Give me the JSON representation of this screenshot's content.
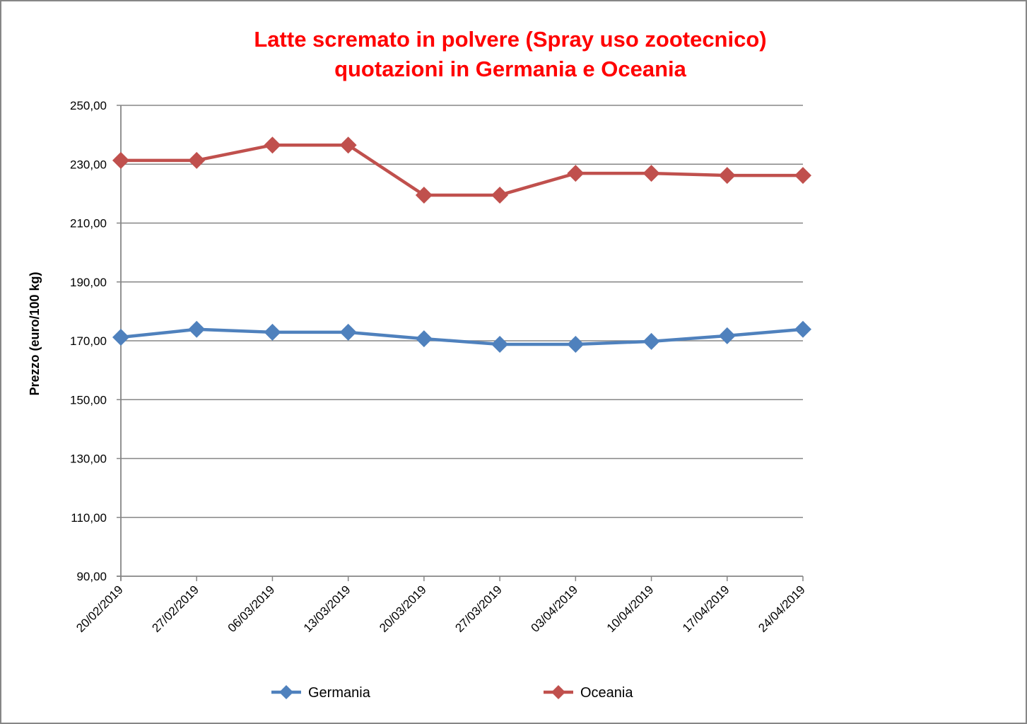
{
  "chart_data": {
    "type": "line",
    "title": [
      "Latte scremato in polvere (Spray uso zootecnico)",
      "quotazioni in Germania e Oceania"
    ],
    "title_color": "#FF0000",
    "xlabel": "",
    "ylabel": "Prezzo (euro/100 kg)",
    "ylim": [
      90,
      250
    ],
    "y_ticks": [
      90,
      110,
      130,
      150,
      170,
      190,
      210,
      230,
      250
    ],
    "y_tick_labels": [
      "90,00",
      "110,00",
      "130,00",
      "150,00",
      "170,00",
      "190,00",
      "210,00",
      "230,00",
      "250,00"
    ],
    "grid": true,
    "legend_position": "bottom",
    "categories": [
      "20/02/2019",
      "27/02/2019",
      "06/03/2019",
      "13/03/2019",
      "20/03/2019",
      "27/03/2019",
      "03/04/2019",
      "10/04/2019",
      "17/04/2019",
      "24/04/2019"
    ],
    "series": [
      {
        "name": "Germania",
        "color": "#4F81BD",
        "marker": "diamond",
        "values": [
          171.2,
          173.9,
          172.9,
          172.9,
          170.7,
          168.8,
          168.8,
          169.8,
          171.7,
          173.9
        ]
      },
      {
        "name": "Oceania",
        "color": "#C0504D",
        "marker": "diamond",
        "values": [
          231.3,
          231.3,
          236.5,
          236.5,
          219.5,
          219.5,
          226.9,
          226.9,
          226.2,
          226.2
        ]
      }
    ]
  }
}
